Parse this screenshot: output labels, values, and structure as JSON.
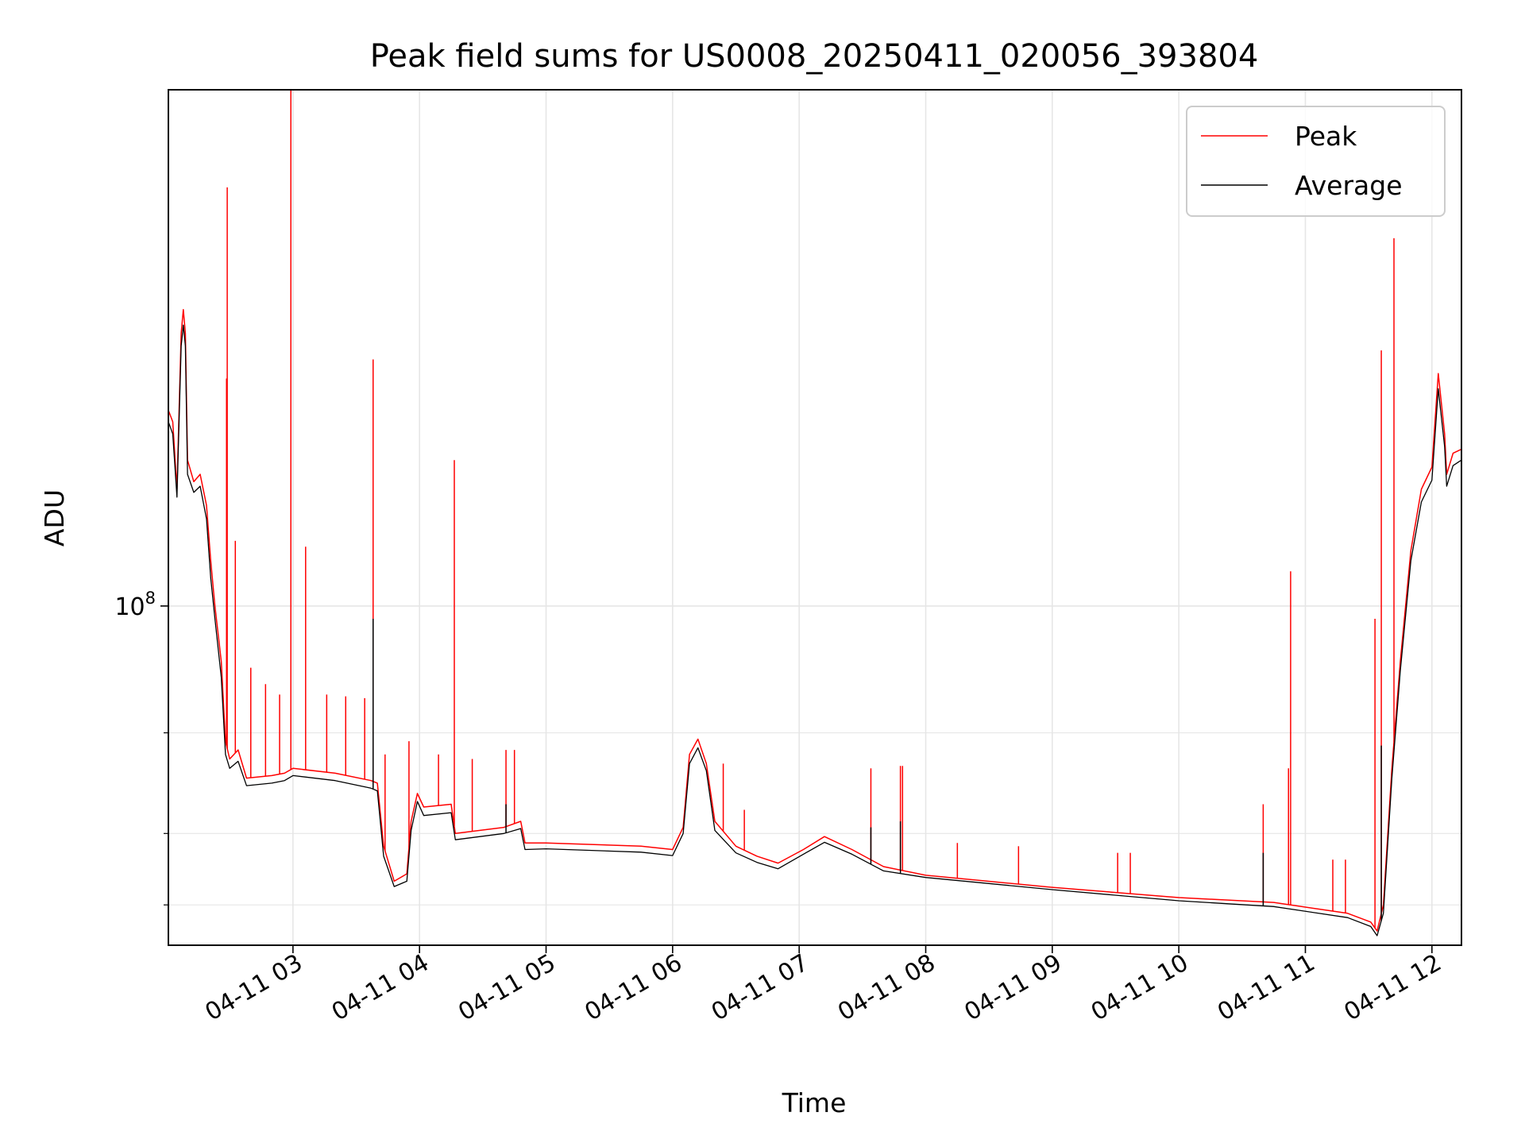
{
  "chart_data": {
    "type": "line",
    "title": "Peak field sums for US0008_20250411_020056_393804",
    "xlabel": "Time",
    "ylabel": "ADU",
    "y_scale": "log",
    "ylim": [
      25500000,
      800000000
    ],
    "y_major_tick": {
      "value": 100000000,
      "label_base": "10",
      "label_exp": "8"
    },
    "y_minor_ticks": [
      30000000,
      40000000,
      60000000
    ],
    "xlim": [
      "2025-04-11 02:00:56",
      "2025-04-11 12:14:00"
    ],
    "x_ticks": [
      {
        "value": "2025-04-11 03:00",
        "label": "04-11 03"
      },
      {
        "value": "2025-04-11 04:00",
        "label": "04-11 04"
      },
      {
        "value": "2025-04-11 05:00",
        "label": "04-11 05"
      },
      {
        "value": "2025-04-11 06:00",
        "label": "04-11 06"
      },
      {
        "value": "2025-04-11 07:00",
        "label": "04-11 07"
      },
      {
        "value": "2025-04-11 08:00",
        "label": "04-11 08"
      },
      {
        "value": "2025-04-11 09:00",
        "label": "04-11 09"
      },
      {
        "value": "2025-04-11 10:00",
        "label": "04-11 10"
      },
      {
        "value": "2025-04-11 11:00",
        "label": "04-11 11"
      },
      {
        "value": "2025-04-11 12:00",
        "label": "04-11 12"
      }
    ],
    "grid": true,
    "legend_position": "top-right",
    "series": [
      {
        "name": "Peak",
        "color": "#ff0000",
        "points": [
          [
            "2025-04-11 02:00:56",
            220000000
          ],
          [
            "2025-04-11 02:03:00",
            210000000
          ],
          [
            "2025-04-11 02:05:00",
            160000000
          ],
          [
            "2025-04-11 02:07:00",
            300000000
          ],
          [
            "2025-04-11 02:08:00",
            330000000
          ],
          [
            "2025-04-11 02:09:00",
            300000000
          ],
          [
            "2025-04-11 02:10:00",
            180000000
          ],
          [
            "2025-04-11 02:13:00",
            165000000
          ],
          [
            "2025-04-11 02:16:00",
            170000000
          ],
          [
            "2025-04-11 02:19:00",
            150000000
          ],
          [
            "2025-04-11 02:21:00",
            120000000
          ],
          [
            "2025-04-11 02:23:00",
            100000000
          ],
          [
            "2025-04-11 02:26:00",
            80000000
          ],
          [
            "2025-04-11 02:28:00",
            58000000
          ],
          [
            "2025-04-11 02:30:00",
            54000000
          ],
          [
            "2025-04-11 02:34:00",
            56000000
          ],
          [
            "2025-04-11 02:38:00",
            50000000
          ],
          [
            "2025-04-11 02:50:00",
            50500000
          ],
          [
            "2025-04-11 02:56:00",
            51000000
          ],
          [
            "2025-04-11 03:00:00",
            52000000
          ],
          [
            "2025-04-11 03:20:00",
            51000000
          ],
          [
            "2025-04-11 03:37:00",
            49500000
          ],
          [
            "2025-04-11 03:40:00",
            49000000
          ],
          [
            "2025-04-11 03:43:00",
            38000000
          ],
          [
            "2025-04-11 03:48:00",
            33000000
          ],
          [
            "2025-04-11 03:54:00",
            34000000
          ],
          [
            "2025-04-11 03:56:00",
            42000000
          ],
          [
            "2025-04-11 03:59:00",
            47000000
          ],
          [
            "2025-04-11 04:02:00",
            44500000
          ],
          [
            "2025-04-11 04:15:00",
            45000000
          ],
          [
            "2025-04-11 04:17:00",
            40000000
          ],
          [
            "2025-04-11 04:40:00",
            41000000
          ],
          [
            "2025-04-11 04:48:00",
            42000000
          ],
          [
            "2025-04-11 04:50:00",
            38500000
          ],
          [
            "2025-04-11 05:00:00",
            38500000
          ],
          [
            "2025-04-11 05:45:00",
            38000000
          ],
          [
            "2025-04-11 06:00:00",
            37500000
          ],
          [
            "2025-04-11 06:05:00",
            41000000
          ],
          [
            "2025-04-11 06:08:00",
            55000000
          ],
          [
            "2025-04-11 06:12:00",
            58500000
          ],
          [
            "2025-04-11 06:16:00",
            53000000
          ],
          [
            "2025-04-11 06:20:00",
            42000000
          ],
          [
            "2025-04-11 06:30:00",
            38000000
          ],
          [
            "2025-04-11 06:40:00",
            36500000
          ],
          [
            "2025-04-11 06:50:00",
            35500000
          ],
          [
            "2025-04-11 07:02:00",
            37500000
          ],
          [
            "2025-04-11 07:12:00",
            39500000
          ],
          [
            "2025-04-11 07:25:00",
            37500000
          ],
          [
            "2025-04-11 07:40:00",
            35000000
          ],
          [
            "2025-04-11 08:00:00",
            33800000
          ],
          [
            "2025-04-11 09:00:00",
            32200000
          ],
          [
            "2025-04-11 10:00:00",
            30900000
          ],
          [
            "2025-04-11 10:45:00",
            30300000
          ],
          [
            "2025-04-11 11:20:00",
            29000000
          ],
          [
            "2025-04-11 11:31:00",
            28000000
          ],
          [
            "2025-04-11 11:34:00",
            27000000
          ],
          [
            "2025-04-11 11:37:00",
            30000000
          ],
          [
            "2025-04-11 11:41:00",
            52000000
          ],
          [
            "2025-04-11 11:45:00",
            80000000
          ],
          [
            "2025-04-11 11:50:00",
            125000000
          ],
          [
            "2025-04-11 11:55:00",
            160000000
          ],
          [
            "2025-04-11 12:00:00",
            175000000
          ],
          [
            "2025-04-11 12:03:00",
            255000000
          ],
          [
            "2025-04-11 12:06:00",
            200000000
          ],
          [
            "2025-04-11 12:07:00",
            170000000
          ],
          [
            "2025-04-11 12:10:00",
            185000000
          ],
          [
            "2025-04-11 12:14:00",
            188000000
          ]
        ],
        "spikes": [
          [
            "2025-04-11 02:28:30",
            250000000
          ],
          [
            "2025-04-11 02:28:50",
            540000000
          ],
          [
            "2025-04-11 02:32:40",
            130000000
          ],
          [
            "2025-04-11 02:40:00",
            78000000
          ],
          [
            "2025-04-11 02:47:00",
            73000000
          ],
          [
            "2025-04-11 02:53:40",
            70000000
          ],
          [
            "2025-04-11 02:59:00",
            800000000
          ],
          [
            "2025-04-11 03:06:00",
            127000000
          ],
          [
            "2025-04-11 03:16:00",
            70000000
          ],
          [
            "2025-04-11 03:25:00",
            69500000
          ],
          [
            "2025-04-11 03:34:00",
            69000000
          ],
          [
            "2025-04-11 03:38:00",
            270000000
          ],
          [
            "2025-04-11 03:43:40",
            55000000
          ],
          [
            "2025-04-11 03:55:00",
            58000000
          ],
          [
            "2025-04-11 04:09:00",
            55000000
          ],
          [
            "2025-04-11 04:16:30",
            180000000
          ],
          [
            "2025-04-11 04:25:00",
            54000000
          ],
          [
            "2025-04-11 04:41:00",
            56000000
          ],
          [
            "2025-04-11 04:45:00",
            56000000
          ],
          [
            "2025-04-11 05:00:00",
            38500000
          ],
          [
            "2025-04-11 06:24:00",
            53000000
          ],
          [
            "2025-04-11 06:34:00",
            44000000
          ],
          [
            "2025-04-11 07:34:00",
            52000000
          ],
          [
            "2025-04-11 07:48:00",
            52500000
          ],
          [
            "2025-04-11 07:49:00",
            52500000
          ],
          [
            "2025-04-11 08:15:00",
            38500000
          ],
          [
            "2025-04-11 08:44:00",
            38000000
          ],
          [
            "2025-04-11 09:31:00",
            37000000
          ],
          [
            "2025-04-11 09:37:00",
            37000000
          ],
          [
            "2025-04-11 10:40:00",
            45000000
          ],
          [
            "2025-04-11 10:52:00",
            52000000
          ],
          [
            "2025-04-11 10:53:00",
            115000000
          ],
          [
            "2025-04-11 11:13:00",
            36000000
          ],
          [
            "2025-04-11 11:19:00",
            36000000
          ],
          [
            "2025-04-11 11:33:00",
            95000000
          ],
          [
            "2025-04-11 11:36:00",
            280000000
          ],
          [
            "2025-04-11 11:42:00",
            440000000
          ]
        ]
      },
      {
        "name": "Average",
        "color": "#000000",
        "points": [
          [
            "2025-04-11 02:00:56",
            210000000
          ],
          [
            "2025-04-11 02:03:00",
            200000000
          ],
          [
            "2025-04-11 02:05:00",
            155000000
          ],
          [
            "2025-04-11 02:07:00",
            285000000
          ],
          [
            "2025-04-11 02:08:00",
            310000000
          ],
          [
            "2025-04-11 02:09:00",
            285000000
          ],
          [
            "2025-04-11 02:10:00",
            170000000
          ],
          [
            "2025-04-11 02:13:00",
            158000000
          ],
          [
            "2025-04-11 02:16:00",
            162000000
          ],
          [
            "2025-04-11 02:19:00",
            142000000
          ],
          [
            "2025-04-11 02:21:00",
            112000000
          ],
          [
            "2025-04-11 02:23:00",
            95000000
          ],
          [
            "2025-04-11 02:26:00",
            75000000
          ],
          [
            "2025-04-11 02:28:00",
            55000000
          ],
          [
            "2025-04-11 02:30:00",
            52000000
          ],
          [
            "2025-04-11 02:34:00",
            53500000
          ],
          [
            "2025-04-11 02:38:00",
            48500000
          ],
          [
            "2025-04-11 02:50:00",
            49000000
          ],
          [
            "2025-04-11 02:56:00",
            49500000
          ],
          [
            "2025-04-11 03:00:00",
            50500000
          ],
          [
            "2025-04-11 03:20:00",
            49500000
          ],
          [
            "2025-04-11 03:37:00",
            48000000
          ],
          [
            "2025-04-11 03:40:00",
            47500000
          ],
          [
            "2025-04-11 03:43:00",
            36500000
          ],
          [
            "2025-04-11 03:48:00",
            32300000
          ],
          [
            "2025-04-11 03:54:00",
            33000000
          ],
          [
            "2025-04-11 03:56:00",
            40500000
          ],
          [
            "2025-04-11 03:59:00",
            45500000
          ],
          [
            "2025-04-11 04:02:00",
            43000000
          ],
          [
            "2025-04-11 04:15:00",
            43500000
          ],
          [
            "2025-04-11 04:17:00",
            39000000
          ],
          [
            "2025-04-11 04:40:00",
            40000000
          ],
          [
            "2025-04-11 04:48:00",
            40800000
          ],
          [
            "2025-04-11 04:50:00",
            37500000
          ],
          [
            "2025-04-11 05:00:00",
            37600000
          ],
          [
            "2025-04-11 05:45:00",
            37100000
          ],
          [
            "2025-04-11 06:00:00",
            36600000
          ],
          [
            "2025-04-11 06:05:00",
            40000000
          ],
          [
            "2025-04-11 06:08:00",
            53000000
          ],
          [
            "2025-04-11 06:12:00",
            56500000
          ],
          [
            "2025-04-11 06:16:00",
            51500000
          ],
          [
            "2025-04-11 06:20:00",
            40500000
          ],
          [
            "2025-04-11 06:30:00",
            37000000
          ],
          [
            "2025-04-11 06:40:00",
            35600000
          ],
          [
            "2025-04-11 06:50:00",
            34700000
          ],
          [
            "2025-04-11 07:02:00",
            36800000
          ],
          [
            "2025-04-11 07:12:00",
            38600000
          ],
          [
            "2025-04-11 07:25:00",
            36800000
          ],
          [
            "2025-04-11 07:40:00",
            34400000
          ],
          [
            "2025-04-11 08:00:00",
            33500000
          ],
          [
            "2025-04-11 09:00:00",
            31900000
          ],
          [
            "2025-04-11 10:00:00",
            30500000
          ],
          [
            "2025-04-11 10:45:00",
            29800000
          ],
          [
            "2025-04-11 11:20:00",
            28500000
          ],
          [
            "2025-04-11 11:31:00",
            27500000
          ],
          [
            "2025-04-11 11:34:00",
            26500000
          ],
          [
            "2025-04-11 11:37:00",
            29000000
          ],
          [
            "2025-04-11 11:41:00",
            50000000
          ],
          [
            "2025-04-11 11:45:00",
            77000000
          ],
          [
            "2025-04-11 11:50:00",
            120000000
          ],
          [
            "2025-04-11 11:55:00",
            152000000
          ],
          [
            "2025-04-11 12:00:00",
            166000000
          ],
          [
            "2025-04-11 12:03:00",
            240000000
          ],
          [
            "2025-04-11 12:06:00",
            190000000
          ],
          [
            "2025-04-11 12:07:00",
            162000000
          ],
          [
            "2025-04-11 12:10:00",
            176000000
          ],
          [
            "2025-04-11 12:14:00",
            180000000
          ]
        ],
        "spikes": [
          [
            "2025-04-11 03:38:00",
            95000000
          ],
          [
            "2025-04-11 04:41:00",
            45000000
          ],
          [
            "2025-04-11 07:34:00",
            41000000
          ],
          [
            "2025-04-11 07:48:00",
            42000000
          ],
          [
            "2025-04-11 10:40:00",
            37000000
          ],
          [
            "2025-04-11 11:36:00",
            57000000
          ]
        ]
      }
    ]
  }
}
